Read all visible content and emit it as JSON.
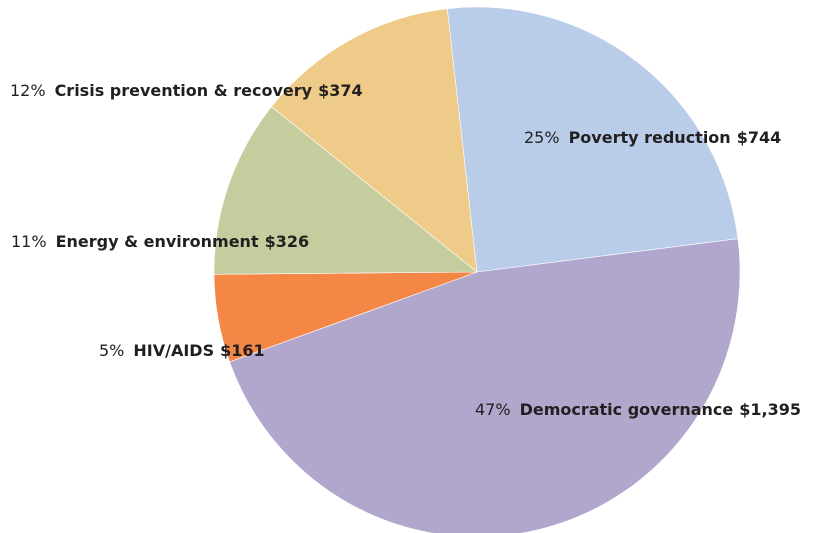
{
  "chart_data": {
    "type": "pie",
    "title": "",
    "unit": "$",
    "slices": [
      {
        "name": "Poverty reduction",
        "percent": "25%",
        "amount": "$744",
        "value": 744,
        "color": "#bacde8"
      },
      {
        "name": "Democratic governance",
        "percent": "47%",
        "amount": "$1,395",
        "value": 1395,
        "color": "#b1a6cb"
      },
      {
        "name": "HIV/AIDS",
        "percent": "5%",
        "amount": "$161",
        "value": 161,
        "color": "#f58746"
      },
      {
        "name": "Energy & environment",
        "percent": "11%",
        "amount": "$326",
        "value": 326,
        "color": "#c5cd9f"
      },
      {
        "name": "Crisis prevention & recovery",
        "percent": "12%",
        "amount": "$374",
        "value": 374,
        "color": "#efcb89"
      }
    ]
  }
}
